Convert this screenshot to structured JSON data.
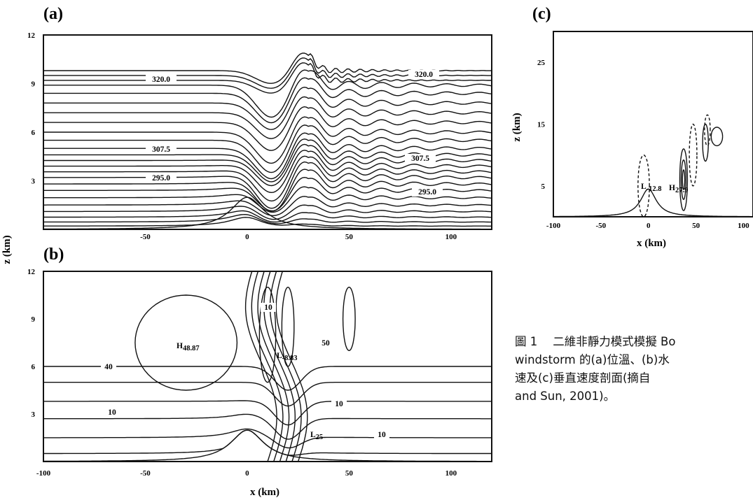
{
  "caption": {
    "prefix": "圖 1",
    "lines": [
      "二維非靜力模式模擬 Bo",
      "windstorm 的(a)位溫、(b)水",
      "速及(c)垂直速度剖面(摘自",
      "and Sun, 2001)。"
    ]
  },
  "shared_ylabel": "z (km)",
  "chart_data": [
    {
      "type": "contour",
      "panel": "(a)",
      "x_range": [
        -100,
        120
      ],
      "ylim": [
        0,
        12
      ],
      "xticks": [
        "-50",
        "0",
        "50",
        "100"
      ],
      "yticks": [
        "3",
        "6",
        "9",
        "12"
      ],
      "xlabel": "",
      "contour_labels": [
        "320.0",
        "320.0",
        "307.5",
        "307.5",
        "295.0",
        "295.0"
      ]
    },
    {
      "type": "contour",
      "panel": "(b)",
      "x_range": [
        -100,
        120
      ],
      "ylim": [
        0,
        12
      ],
      "xticks": [
        "-100",
        "-50",
        "0",
        "50",
        "100"
      ],
      "yticks": [
        "3",
        "6",
        "9",
        "12"
      ],
      "xlabel": "x (km)",
      "contour_labels": [
        "10",
        "40",
        "10",
        "50",
        "10",
        "10"
      ],
      "extrema": [
        {
          "type": "H",
          "value": "48.87"
        },
        {
          "type": "L",
          "value": "-8.83"
        },
        {
          "type": "L",
          "value": "25"
        }
      ]
    },
    {
      "type": "contour",
      "panel": "(c)",
      "x_range": [
        -100,
        110
      ],
      "ylim": [
        0,
        30
      ],
      "xticks": [
        "-100",
        "-50",
        "0",
        "50",
        "100"
      ],
      "yticks": [
        "5",
        "15",
        "25"
      ],
      "xlabel": "x (km)",
      "ylabel": "z (km)",
      "extrema": [
        {
          "type": "L",
          "value": "-12.8"
        },
        {
          "type": "H",
          "value": "27.9"
        }
      ]
    }
  ]
}
